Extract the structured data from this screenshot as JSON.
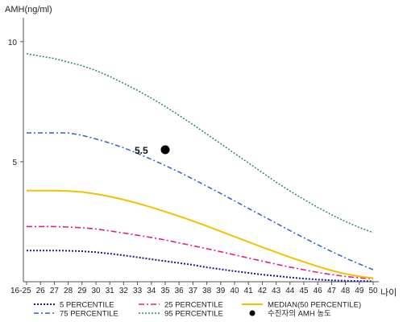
{
  "chart_data": {
    "type": "line",
    "ylabel": "AMH(ng/ml)",
    "xlabel": "나이",
    "ylim": [
      0,
      11
    ],
    "yticks": [
      5,
      10
    ],
    "grid": false,
    "legend_position": "bottom",
    "x": [
      "16-25",
      "26",
      "27",
      "28",
      "29",
      "30",
      "31",
      "32",
      "33",
      "34",
      "35",
      "36",
      "37",
      "38",
      "39",
      "40",
      "41",
      "42",
      "43",
      "44",
      "45",
      "46",
      "47",
      "48",
      "49",
      "50"
    ],
    "series": [
      {
        "name": "5 PERCENTILE",
        "color": "#1a1a8c",
        "dash": "2,2",
        "width": 2,
        "values": [
          1.3,
          1.3,
          1.3,
          1.29,
          1.27,
          1.23,
          1.17,
          1.1,
          1.02,
          0.94,
          0.86,
          0.78,
          0.7,
          0.6,
          0.52,
          0.44,
          0.37,
          0.3,
          0.24,
          0.18,
          0.13,
          0.09,
          0.06,
          0.04,
          0.03,
          0.02
        ]
      },
      {
        "name": "25 PERCENTILE",
        "color": "#e0218a",
        "dash": "7,3,2,3",
        "width": 1.6,
        "values": [
          2.3,
          2.3,
          2.3,
          2.28,
          2.25,
          2.2,
          2.12,
          2.03,
          1.94,
          1.84,
          1.74,
          1.62,
          1.5,
          1.38,
          1.25,
          1.12,
          0.99,
          0.86,
          0.73,
          0.61,
          0.5,
          0.39,
          0.3,
          0.22,
          0.16,
          0.12
        ]
      },
      {
        "name": "MEDIAN(50 PERCENTILE)",
        "color": "#f2c200",
        "dash": "",
        "width": 2,
        "values": [
          3.8,
          3.8,
          3.8,
          3.78,
          3.74,
          3.66,
          3.55,
          3.42,
          3.27,
          3.1,
          2.92,
          2.73,
          2.53,
          2.32,
          2.1,
          1.88,
          1.66,
          1.44,
          1.23,
          1.02,
          0.83,
          0.64,
          0.47,
          0.33,
          0.22,
          0.15
        ]
      },
      {
        "name": "75 PERCENTILE",
        "color": "#3a5fc8",
        "dash": "6,3,2,3",
        "width": 1.5,
        "values": [
          6.2,
          6.2,
          6.2,
          6.2,
          6.1,
          5.95,
          5.78,
          5.58,
          5.35,
          5.1,
          4.84,
          4.57,
          4.28,
          3.98,
          3.68,
          3.37,
          3.06,
          2.75,
          2.44,
          2.13,
          1.83,
          1.54,
          1.26,
          0.99,
          0.74,
          0.5
        ]
      },
      {
        "name": "95 PERCENTILE",
        "color": "#2e8b57",
        "dash": "2,2",
        "width": 1.5,
        "values": [
          9.5,
          9.4,
          9.3,
          9.15,
          9.0,
          8.8,
          8.55,
          8.27,
          7.97,
          7.65,
          7.3,
          6.93,
          6.55,
          6.15,
          5.75,
          5.35,
          4.95,
          4.55,
          4.15,
          3.78,
          3.43,
          3.1,
          2.79,
          2.51,
          2.26,
          2.05
        ]
      }
    ],
    "point": {
      "name": "수진자의 AMH 농도",
      "x": "35",
      "y": 5.5,
      "label": "5.5",
      "color": "#000000"
    }
  }
}
